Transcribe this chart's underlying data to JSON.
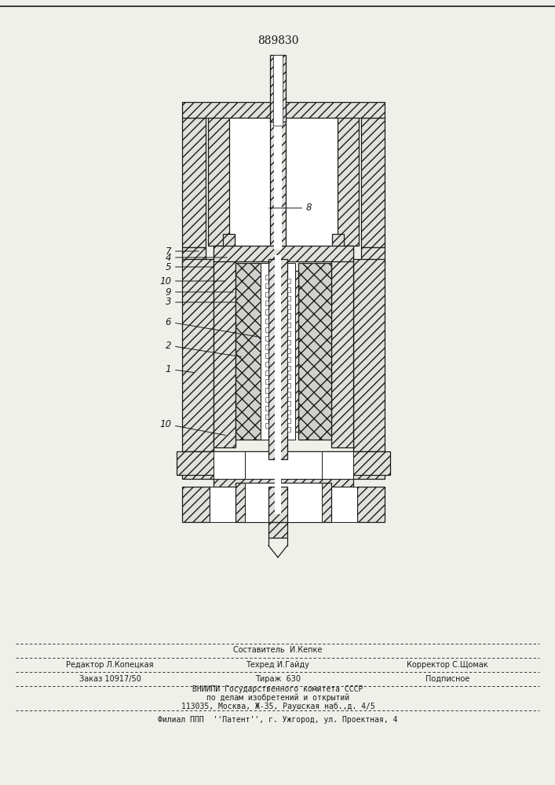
{
  "patent_number": "889830",
  "bg_color": "#f0f0eb",
  "line_color": "#1a1a1a",
  "title_fontsize": 10,
  "label_fontsize": 8.5,
  "footer_fontsize": 7,
  "footer_line0_center": "Составитель  И.Кепке",
  "footer_line1_left": "Редактор Л.Копецкая",
  "footer_line1_center": "Техред И.Гайду",
  "footer_line1_right": "Корректор С.Щомак",
  "footer_line2_left": "Заказ 10917/50",
  "footer_line2_center": "Тираж  630",
  "footer_line2_right": "Подписное",
  "footer_line3": "ВНИИПИ Государственного комитета СССР",
  "footer_line4": "по делам изобретений и открытий",
  "footer_line5": "113035, Москва, Ж-35, Раушская наб.,д. 4/5",
  "footer_line6": "Филиал ППП  ''Патент'', г. Ужгород, ул. Проектная, 4"
}
